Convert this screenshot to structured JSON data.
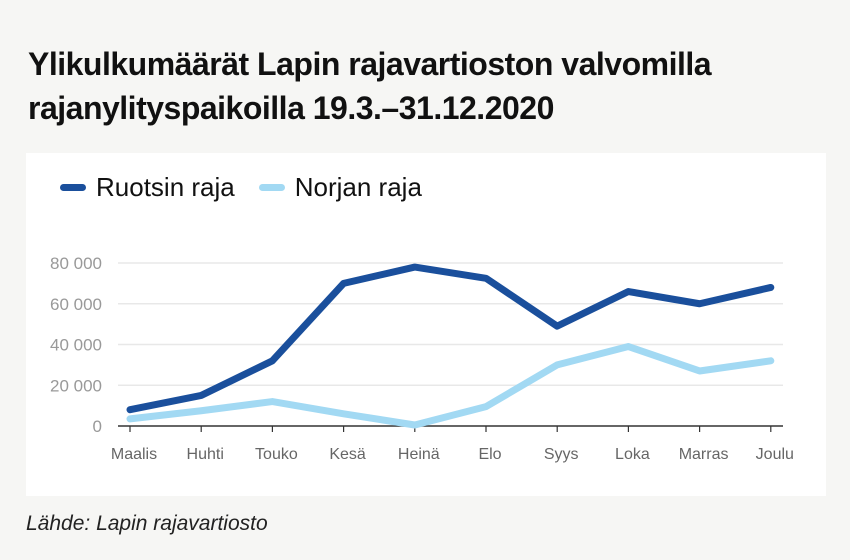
{
  "title": "Ylikulkumäärät Lapin rajavartioston valvomilla rajanylityspaikoilla 19.3.–31.12.2020",
  "source": "Lähde: Lapin rajavartiosto",
  "chart_data": {
    "type": "line",
    "title": "Ylikulkumäärät Lapin rajavartioston valvomilla rajanylityspaikoilla 19.3.–31.12.2020",
    "categories": [
      "Maalis",
      "Huhti",
      "Touko",
      "Kesä",
      "Heinä",
      "Elo",
      "Syys",
      "Loka",
      "Marras",
      "Joulu"
    ],
    "ylim": [
      0,
      80000
    ],
    "yticks": [
      0,
      20000,
      40000,
      60000,
      80000
    ],
    "ytick_labels": [
      "0",
      "20 000",
      "40 000",
      "60 000",
      "80 000"
    ],
    "grid": true,
    "legend_placement": "top-left",
    "series": [
      {
        "name": "Ruotsin raja",
        "color": "#1a4f9c",
        "values": [
          8000,
          15000,
          32000,
          70000,
          78000,
          72500,
          49000,
          66000,
          60000,
          68000
        ]
      },
      {
        "name": "Norjan raja",
        "color": "#a2d9f3",
        "values": [
          3500,
          7500,
          12000,
          6000,
          500,
          9500,
          30000,
          39000,
          27000,
          32000
        ]
      }
    ]
  }
}
